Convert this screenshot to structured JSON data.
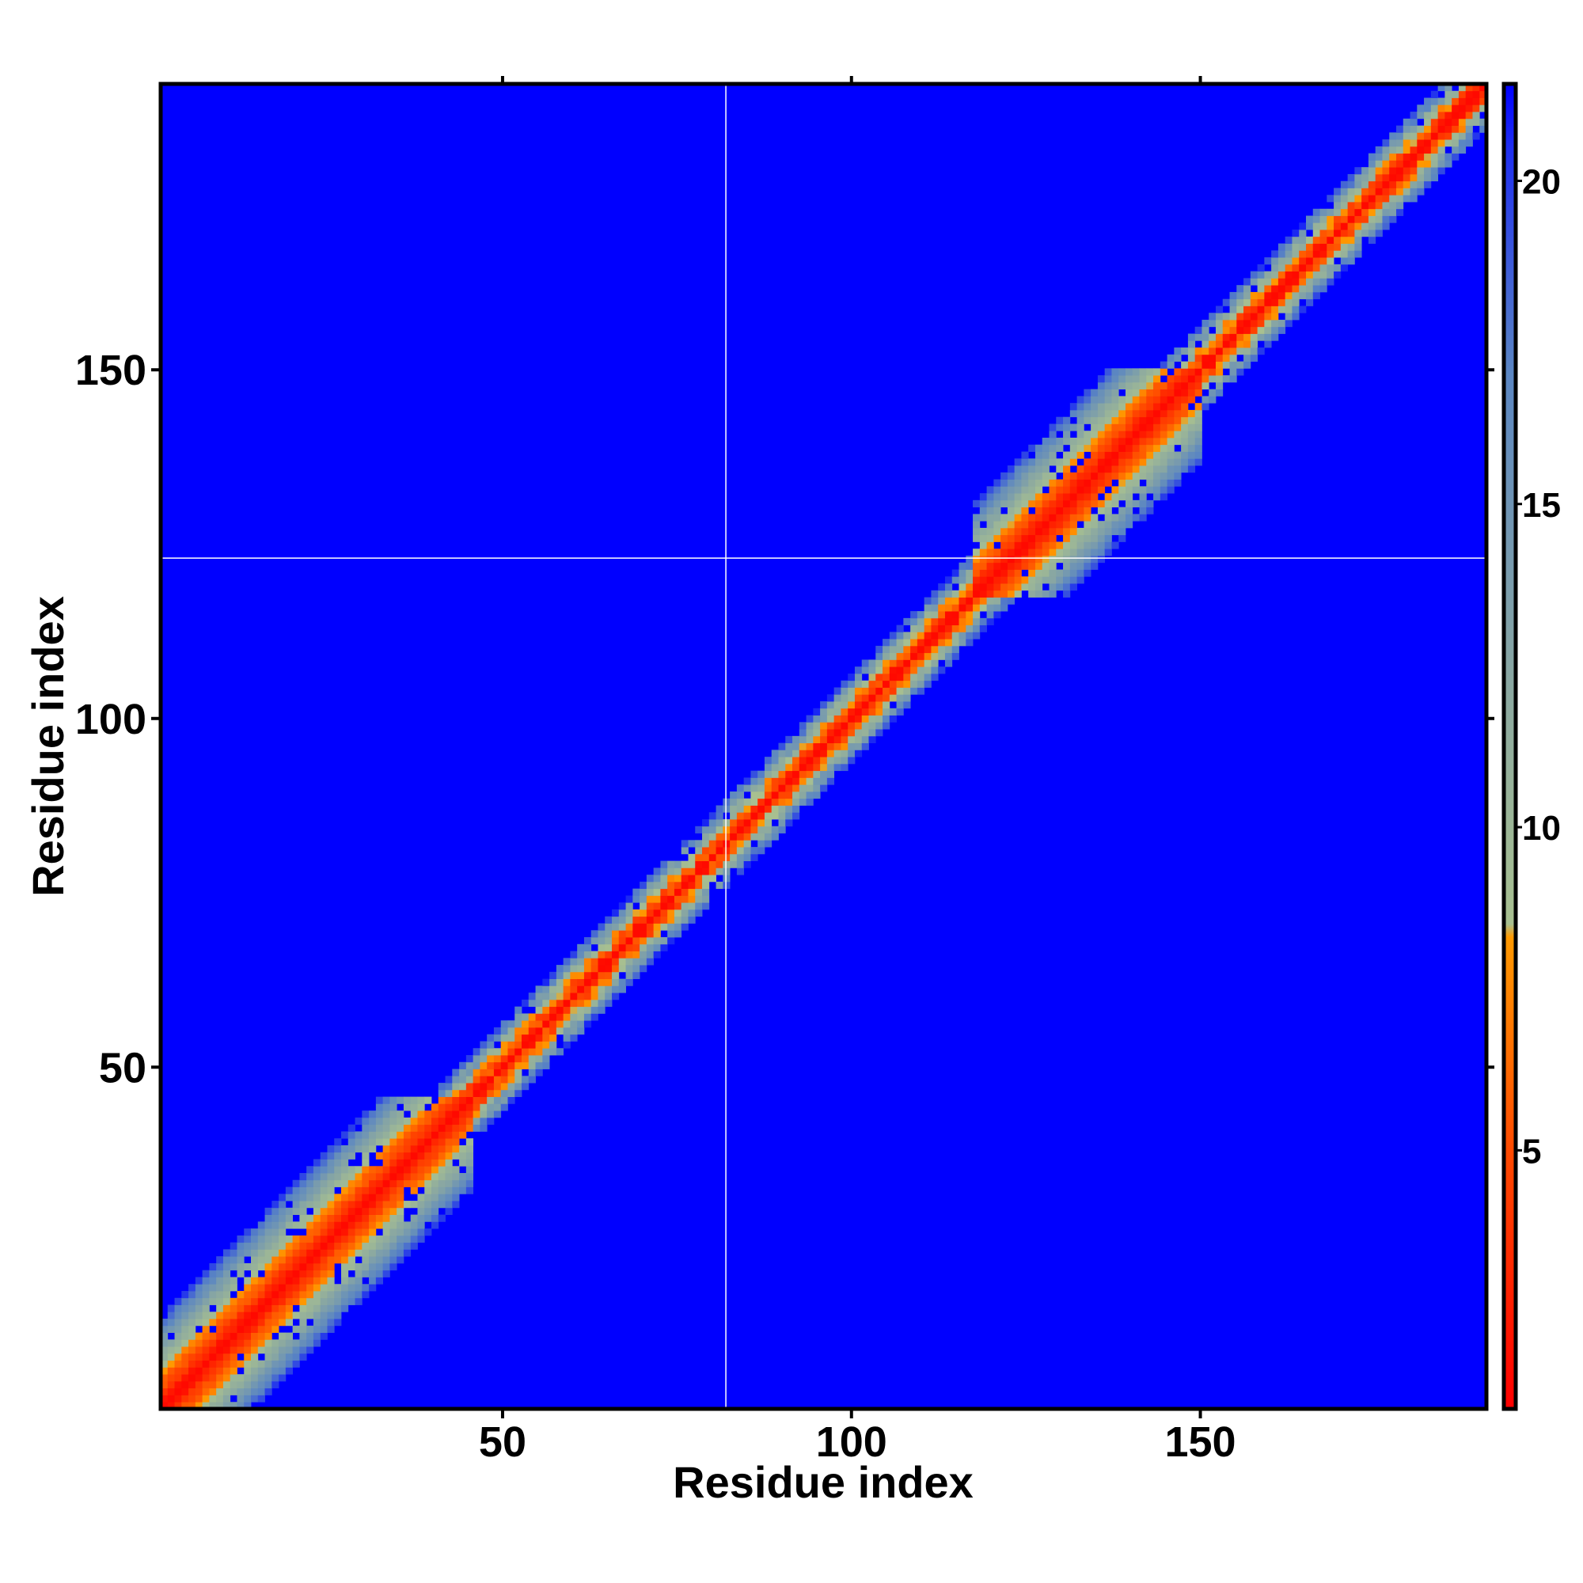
{
  "chart_data": {
    "type": "heatmap",
    "title": "",
    "xlabel": "Residue index",
    "ylabel": "Residue index",
    "xlim": [
      1,
      191
    ],
    "ylim": [
      1,
      191
    ],
    "x_ticks": [
      50,
      100,
      150
    ],
    "y_ticks": [
      50,
      100,
      150
    ],
    "n_residues": 191,
    "matrix_kind": "symmetric distance map, minimum along the diagonal",
    "colorbar": {
      "range": [
        1,
        21.5
      ],
      "ticks": [
        5,
        10,
        15,
        20
      ],
      "stops": [
        {
          "value": 1,
          "color": "#ff0000"
        },
        {
          "value": 5,
          "color": "#ff4a00"
        },
        {
          "value": 8.3,
          "color": "#ff9900"
        },
        {
          "value": 8.5,
          "color": "#a8c090"
        },
        {
          "value": 12,
          "color": "#8ca9a0"
        },
        {
          "value": 17,
          "color": "#5b86c2"
        },
        {
          "value": 20.5,
          "color": "#1f2ff0"
        },
        {
          "value": 21.5,
          "color": "#0000ff"
        }
      ]
    },
    "diagonal_profile": {
      "description": "values at sequence separation d for d = 0..14; beyond this the value is about 21",
      "helix_like_segments": [
        [
          1,
          45
        ],
        [
          118,
          150
        ]
      ],
      "helix_like": [
        1.5,
        2.5,
        3.8,
        5.2,
        6.2,
        7.8,
        9.5,
        10.5,
        11.8,
        13,
        14.5,
        16,
        17.5,
        19.5,
        21
      ],
      "coil_like": [
        1.5,
        3.8,
        6.5,
        9.5,
        12.5,
        15.5,
        18.5,
        21,
        21,
        21,
        21,
        21,
        21,
        21,
        21
      ]
    },
    "reference_lines": {
      "x": 82,
      "y": 123,
      "color": "#ffffff"
    },
    "background_color": "#0000ff",
    "grid": false,
    "legend": "colorbar-right"
  }
}
